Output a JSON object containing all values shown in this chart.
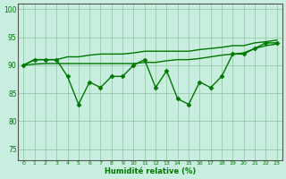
{
  "x": [
    0,
    1,
    2,
    3,
    4,
    5,
    6,
    7,
    8,
    9,
    10,
    11,
    12,
    13,
    14,
    15,
    16,
    17,
    18,
    19,
    20,
    21,
    22,
    23
  ],
  "y_main": [
    90,
    91,
    91,
    91,
    88,
    83,
    87,
    86,
    88,
    88,
    90,
    91,
    86,
    89,
    84,
    83,
    87,
    86,
    88,
    92,
    92,
    93,
    94,
    94
  ],
  "y_upper": [
    90,
    91,
    91,
    91,
    91.5,
    91.5,
    91.8,
    92,
    92,
    92,
    92.2,
    92.5,
    92.5,
    92.5,
    92.5,
    92.5,
    92.8,
    93,
    93.2,
    93.5,
    93.5,
    94,
    94.2,
    94.5
  ],
  "y_lower": [
    90,
    90.2,
    90.3,
    90.3,
    90.3,
    90.3,
    90.3,
    90.3,
    90.3,
    90.3,
    90.3,
    90.5,
    90.5,
    90.8,
    91,
    91,
    91.2,
    91.5,
    91.8,
    92,
    92.2,
    93,
    93.5,
    93.8
  ],
  "line_color": "#007700",
  "bg_color": "#c8eee0",
  "grid_color": "#99ccaa",
  "tick_label_color": "#007700",
  "xlabel": "Humidité relative (%)",
  "ylim": [
    73,
    101
  ],
  "yticks": [
    75,
    80,
    85,
    90,
    95,
    100
  ],
  "xlim": [
    -0.5,
    23.5
  ],
  "marker": "D",
  "markersize": 2.5,
  "linewidth": 1.0
}
